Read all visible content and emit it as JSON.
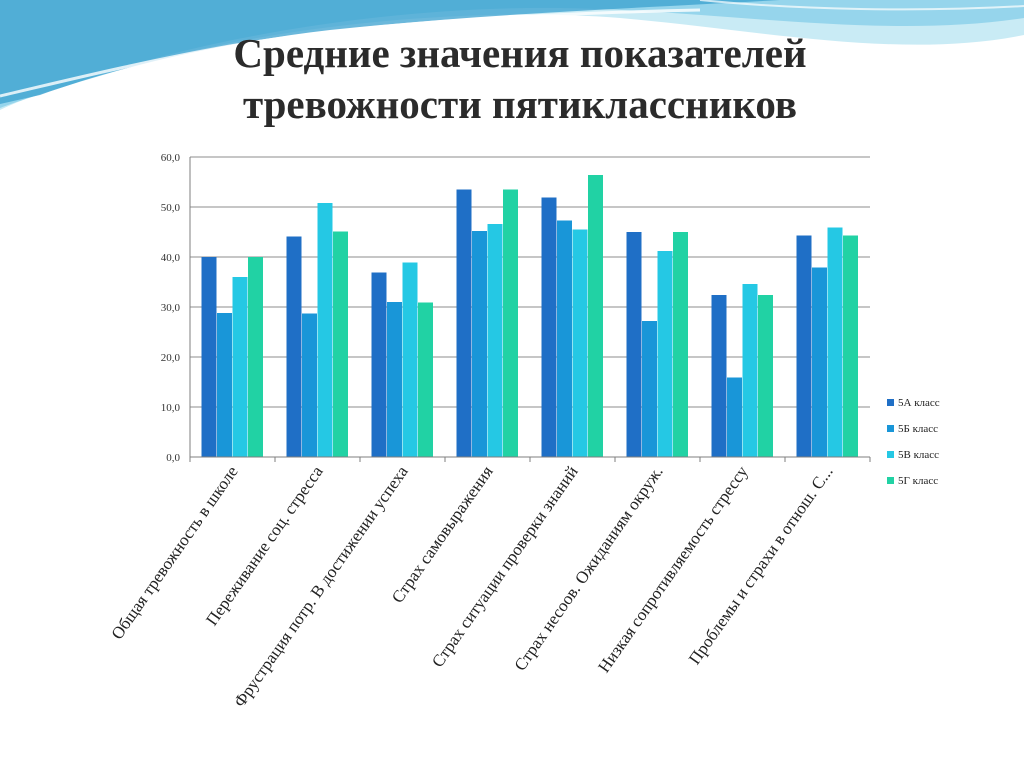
{
  "title": {
    "line1": "Средние значения показателей",
    "line2": "тревожности пятиклассников"
  },
  "colors": {
    "wave_dark": "#3aa0cf",
    "wave_light": "#bfe7f3",
    "axis": "#7f7f7f",
    "grid": "#8c8c8c"
  },
  "chart_data": {
    "type": "bar",
    "title": "",
    "xlabel": "",
    "ylabel": "",
    "ylim": [
      0,
      60
    ],
    "y_ticks": [
      "0,0",
      "10,0",
      "20,0",
      "30,0",
      "40,0",
      "50,0",
      "60,0"
    ],
    "grid": true,
    "legend_position": "right",
    "categories": [
      "Общая тревожность в школе",
      "Переживание соц. стресса",
      "Фрустрация потр. В достижении успеха",
      "Страх самовыражения",
      "Страх ситуации проверки знаний",
      "Страх несоов. Ожиданиям окруж.",
      "Низкая сопротивляемость стрессу",
      "Проблемы и страхи в отнош. С..."
    ],
    "series": [
      {
        "name": "5А класс",
        "color": "#1f6fc6",
        "values": [
          40.0,
          44.1,
          36.9,
          53.5,
          51.9,
          45.0,
          32.4,
          44.3
        ]
      },
      {
        "name": "5Б класс",
        "color": "#1996d8",
        "values": [
          28.8,
          28.7,
          31.0,
          45.2,
          47.3,
          27.2,
          15.9,
          37.9
        ]
      },
      {
        "name": "5В класс",
        "color": "#25c8e4",
        "values": [
          36.0,
          50.8,
          38.9,
          46.6,
          45.5,
          41.2,
          34.6,
          45.9
        ]
      },
      {
        "name": "5Г класс",
        "color": "#21d2a4",
        "values": [
          40.0,
          45.1,
          30.9,
          53.5,
          56.4,
          45.0,
          32.4,
          44.3
        ]
      }
    ]
  }
}
